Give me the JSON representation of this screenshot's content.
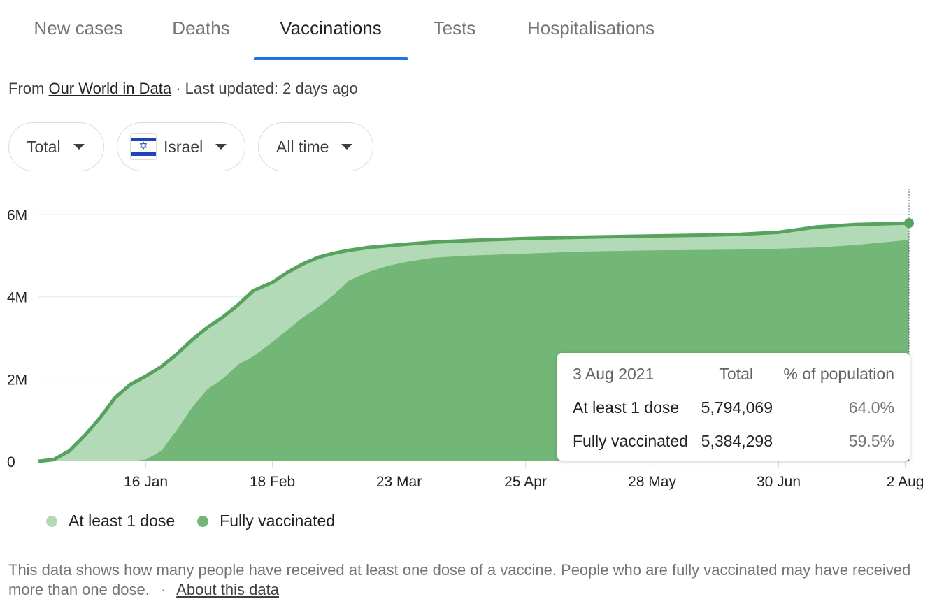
{
  "tabs": [
    {
      "label": "New cases"
    },
    {
      "label": "Deaths"
    },
    {
      "label": "Vaccinations",
      "active": true
    },
    {
      "label": "Tests"
    },
    {
      "label": "Hospitalisations"
    }
  ],
  "source": {
    "prefix": "From",
    "link": "Our World in Data",
    "updated": "· Last updated: 2 days ago"
  },
  "filters": {
    "metric": "Total",
    "country": "Israel",
    "range": "All time"
  },
  "tooltip": {
    "date": "3 Aug 2021",
    "col_total": "Total",
    "col_pct": "% of population",
    "rows": [
      {
        "label": "At least 1 dose",
        "total": "5,794,069",
        "pct": "64.0%"
      },
      {
        "label": "Fully vaccinated",
        "total": "5,384,298",
        "pct": "59.5%"
      }
    ]
  },
  "legend": {
    "items": [
      {
        "label": "At least 1 dose",
        "color": "#b3dab6"
      },
      {
        "label": "Fully vaccinated",
        "color": "#72b678"
      }
    ]
  },
  "footnote": {
    "text": "This data shows how many people have received at least one dose of a vaccine. People who are fully vaccinated may have received more than one dose.",
    "separator": "·",
    "link": "About this data"
  },
  "colors": {
    "line": "#57a35d",
    "area_at_least_one": "#b3dab6",
    "area_fully": "#72b678",
    "gridline": "#e8eaed",
    "tab_accent": "#1a73e8"
  },
  "chart_data": {
    "type": "area",
    "y_tick_labels": [
      "0",
      "2M",
      "4M",
      "6M"
    ],
    "y_ticks": [
      0,
      2000000,
      4000000,
      6000000
    ],
    "ylim": [
      0,
      6800000
    ],
    "x_tick_labels": [
      "16 Jan",
      "18 Feb",
      "23 Mar",
      "25 Apr",
      "28 May",
      "30 Jun",
      "2 Aug"
    ],
    "x_tick_dates": [
      "2021-01-16",
      "2021-02-18",
      "2021-03-23",
      "2021-04-25",
      "2021-05-28",
      "2021-06-30",
      "2021-08-02"
    ],
    "xlim": [
      "2020-12-19",
      "2021-08-03"
    ],
    "x": [
      "2020-12-19",
      "2020-12-23",
      "2020-12-27",
      "2020-12-31",
      "2021-01-04",
      "2021-01-08",
      "2021-01-12",
      "2021-01-16",
      "2021-01-20",
      "2021-01-24",
      "2021-01-28",
      "2021-02-01",
      "2021-02-05",
      "2021-02-09",
      "2021-02-13",
      "2021-02-18",
      "2021-02-22",
      "2021-02-26",
      "2021-03-02",
      "2021-03-06",
      "2021-03-10",
      "2021-03-15",
      "2021-03-20",
      "2021-03-25",
      "2021-04-01",
      "2021-04-10",
      "2021-04-25",
      "2021-05-10",
      "2021-05-28",
      "2021-06-10",
      "2021-06-20",
      "2021-06-30",
      "2021-07-10",
      "2021-07-20",
      "2021-08-03"
    ],
    "series": [
      {
        "name": "At least 1 dose",
        "values": [
          0,
          40000,
          250000,
          620000,
          1050000,
          1550000,
          1870000,
          2070000,
          2300000,
          2600000,
          2950000,
          3250000,
          3500000,
          3800000,
          4150000,
          4350000,
          4600000,
          4800000,
          4960000,
          5060000,
          5130000,
          5200000,
          5240000,
          5280000,
          5330000,
          5370000,
          5420000,
          5450000,
          5480000,
          5500000,
          5520000,
          5570000,
          5700000,
          5760000,
          5794069
        ]
      },
      {
        "name": "Fully vaccinated",
        "values": [
          0,
          0,
          0,
          0,
          0,
          0,
          0,
          40000,
          250000,
          750000,
          1300000,
          1750000,
          2000000,
          2350000,
          2550000,
          2900000,
          3200000,
          3500000,
          3750000,
          4050000,
          4400000,
          4600000,
          4750000,
          4850000,
          4950000,
          5000000,
          5050000,
          5100000,
          5130000,
          5140000,
          5150000,
          5170000,
          5200000,
          5260000,
          5384298
        ]
      }
    ],
    "grid": true,
    "legend_position": "bottom-left"
  }
}
